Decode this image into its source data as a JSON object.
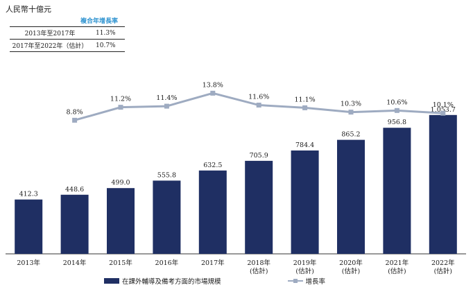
{
  "unit_label": "人民幣十億元",
  "cagr_table": {
    "header": "複合年增長率",
    "rows": [
      {
        "period": "2013年至2017年",
        "value": "11.3%"
      },
      {
        "period": "2017年至2022年（估計）",
        "value": "10.7%"
      }
    ]
  },
  "legend": {
    "bar_label": "在課外輔導及備考方面的市場規模",
    "line_label": "增長率"
  },
  "colors": {
    "bar": "#1f2f63",
    "line": "#9eabc1",
    "cagr_header": "#2f93d0"
  },
  "chart_data": {
    "type": "bar",
    "categories": [
      [
        "2013年"
      ],
      [
        "2014年"
      ],
      [
        "2015年"
      ],
      [
        "2016年"
      ],
      [
        "2017年"
      ],
      [
        "2018年",
        "(估計)"
      ],
      [
        "2019年",
        "(估計)"
      ],
      [
        "2020年",
        "(估計)"
      ],
      [
        "2021年",
        "(估計)"
      ],
      [
        "2022年",
        "(估計)"
      ]
    ],
    "series": [
      {
        "name": "在課外輔導及備考方面的市場規模",
        "type": "bar",
        "values": [
          412.3,
          448.6,
          499.0,
          555.8,
          632.5,
          705.9,
          784.4,
          865.2,
          956.8,
          1053.7
        ],
        "labels": [
          "412.3",
          "448.6",
          "499.0",
          "555.8",
          "632.5",
          "705.9",
          "784.4",
          "865.2",
          "956.8",
          "1,053.7"
        ]
      },
      {
        "name": "增長率",
        "type": "line",
        "values": [
          null,
          8.8,
          11.2,
          11.4,
          13.8,
          11.6,
          11.1,
          10.3,
          10.6,
          10.1
        ],
        "labels": [
          null,
          "8.8%",
          "11.2%",
          "11.4%",
          "13.8%",
          "11.6%",
          "11.1%",
          "10.3%",
          "10.6%",
          "10.1%"
        ]
      }
    ],
    "ylabel": "人民幣十億元",
    "ylim": [
      0,
      1100
    ]
  }
}
